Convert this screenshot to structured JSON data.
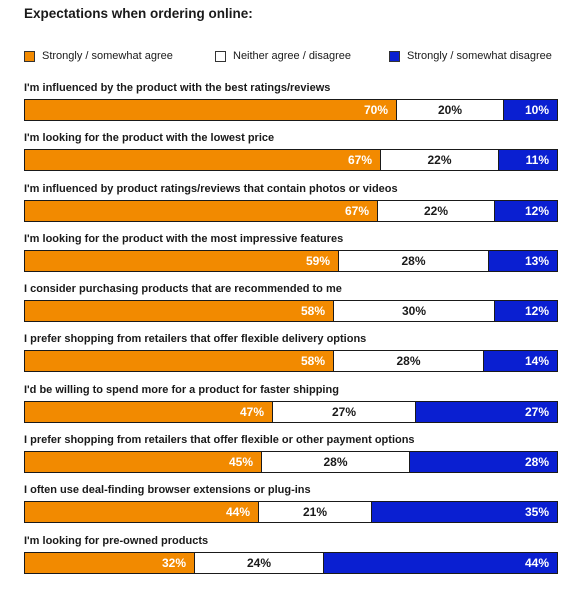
{
  "title": "Expectations when ordering online:",
  "chart_data": {
    "type": "bar",
    "stacked": true,
    "orientation": "horizontal",
    "title": "Expectations when ordering online:",
    "legend_position": "top",
    "categories": [
      "I'm influenced by the product with the best ratings/reviews",
      "I'm looking for the product with the lowest price",
      "I'm influenced by product ratings/reviews that contain photos or videos",
      "I'm looking for the product with the most impressive features",
      "I consider purchasing products that are recommended to me",
      "I prefer shopping from retailers that offer flexible delivery options",
      "I'd be willing to spend more for a product for faster shipping",
      "I prefer shopping from retailers that offer flexible or other payment options",
      "I often use deal-finding browser extensions or plug-ins",
      "I'm looking for pre-owned products"
    ],
    "series": [
      {
        "name": "Strongly / somewhat agree",
        "color": "#f28a00",
        "values": [
          70,
          67,
          67,
          59,
          58,
          58,
          47,
          45,
          44,
          32
        ]
      },
      {
        "name": "Neither agree / disagree",
        "color": "#ffffff",
        "values": [
          20,
          22,
          22,
          28,
          30,
          28,
          27,
          28,
          21,
          24
        ]
      },
      {
        "name": "Strongly / somewhat disagree",
        "color": "#0a1fd1",
        "values": [
          10,
          11,
          12,
          13,
          12,
          14,
          27,
          28,
          35,
          44
        ]
      }
    ],
    "value_suffix": "%"
  }
}
